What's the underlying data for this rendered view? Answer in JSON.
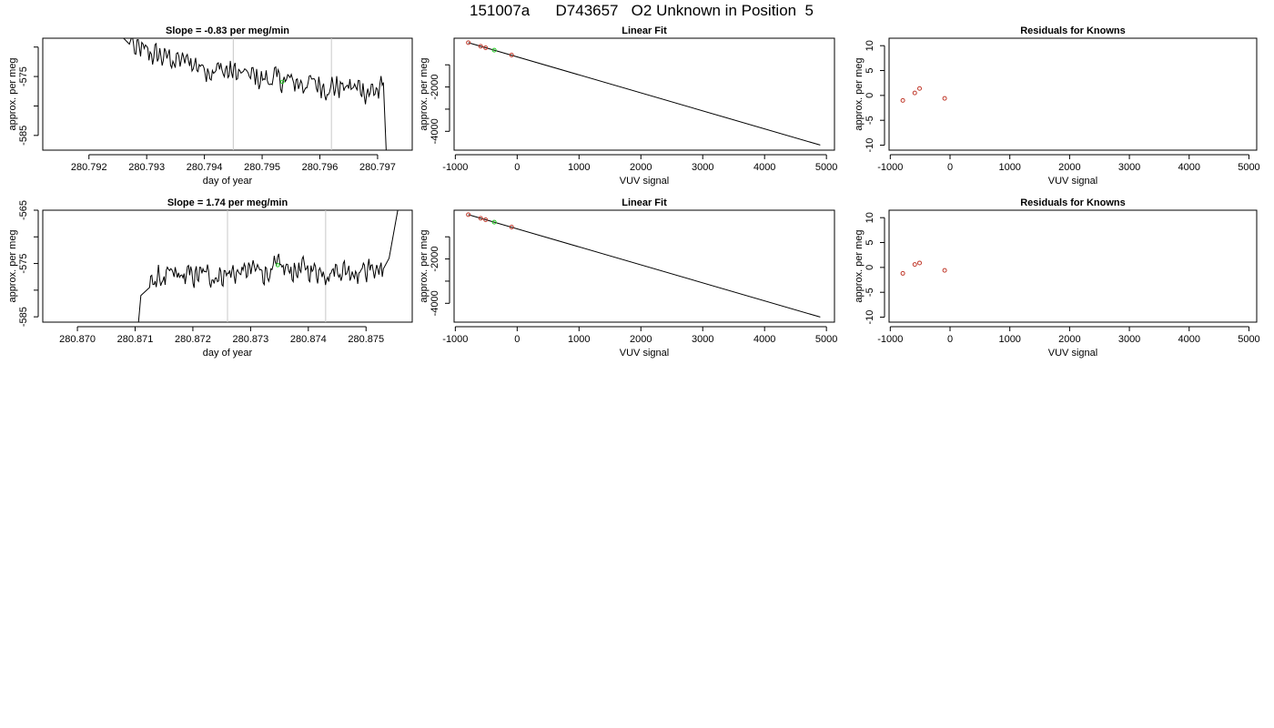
{
  "page_title": "151007a      D743657   O2 Unknown in Position  5",
  "colors": {
    "axis": "#000000",
    "trace": "#000000",
    "vline": "#c8c8c8",
    "known_point": "#c0392b",
    "unknown_point": "#22cc22"
  },
  "chart_data": [
    {
      "type": "line",
      "title": "Slope =  -0.83  per meg/min",
      "xlabel": "day of year",
      "ylabel": "approx. per meg",
      "xlim": [
        280.7912,
        280.7976
      ],
      "ylim": [
        -587.5,
        -568.5
      ],
      "x_ticks": [
        280.792,
        280.793,
        280.794,
        280.795,
        280.796,
        280.797
      ],
      "x_tick_labels": [
        "280.792",
        "280.793",
        "280.794",
        "280.795",
        "280.796",
        "280.797"
      ],
      "y_ticks": [
        -575,
        -585
      ],
      "y_tick_labels": [
        "-575",
        "-585"
      ],
      "extra_y_ticks": [
        -570,
        -580
      ],
      "vertical_lines": [
        280.7945,
        280.7962
      ],
      "trace": {
        "x_start": 280.7926,
        "x_end": 280.79715,
        "start_points": [
          [
            280.7926,
            -568.5
          ],
          [
            280.7927,
            -569.5
          ],
          [
            280.79275,
            -568.0
          ]
        ],
        "end_points": [
          [
            280.7971,
            -576.0
          ],
          [
            280.79715,
            -588.0
          ]
        ],
        "baseline_start": -570.5,
        "baseline_mid": -575.3,
        "baseline_end": -577.5,
        "noise": 1.4
      },
      "marker": {
        "x": 280.79535,
        "y": -575.9
      }
    },
    {
      "type": "scatter",
      "title": "Linear Fit",
      "xlabel": "VUV signal",
      "ylabel": "approx. per meg",
      "xlim": [
        -1020,
        5130
      ],
      "ylim": [
        -4850,
        200
      ],
      "x_ticks": [
        -1000,
        0,
        1000,
        2000,
        3000,
        4000,
        5000
      ],
      "x_tick_labels": [
        "-1000",
        "0",
        "1000",
        "2000",
        "3000",
        "4000",
        "5000"
      ],
      "y_ticks": [
        -2000,
        -4000
      ],
      "y_tick_labels": [
        "-2000",
        "-4000"
      ],
      "extra_y_ticks": [
        -1000,
        -3000
      ],
      "fit_line": [
        [
          -790,
          0
        ],
        [
          4900,
          -4620
        ]
      ],
      "known_points": [
        [
          -790,
          0
        ],
        [
          -590,
          -165
        ],
        [
          -510,
          -230
        ],
        [
          -90,
          -560
        ]
      ],
      "unknown_points": [
        [
          -370,
          -340
        ]
      ]
    },
    {
      "type": "scatter",
      "title": "Residuals for Knowns",
      "xlabel": "VUV signal",
      "ylabel": "approx. per meg",
      "xlim": [
        -1020,
        5130
      ],
      "ylim": [
        -11,
        11.5
      ],
      "x_ticks": [
        -1000,
        0,
        1000,
        2000,
        3000,
        4000,
        5000
      ],
      "x_tick_labels": [
        "-1000",
        "0",
        "1000",
        "2000",
        "3000",
        "4000",
        "5000"
      ],
      "y_ticks": [
        10,
        5,
        0,
        -5,
        -10
      ],
      "y_tick_labels": [
        "10",
        "5",
        "0",
        "-5",
        "-10"
      ],
      "known_points": [
        [
          -790,
          -1.0
        ],
        [
          -590,
          0.5
        ],
        [
          -510,
          1.4
        ],
        [
          -90,
          -0.6
        ]
      ]
    },
    {
      "type": "line",
      "title": "Slope =  1.74  per meg/min",
      "xlabel": "day of year",
      "ylabel": "approx. per meg",
      "xlim": [
        280.8694,
        280.8758
      ],
      "ylim": [
        -586,
        -565
      ],
      "x_ticks": [
        280.87,
        280.871,
        280.872,
        280.873,
        280.874,
        280.875
      ],
      "x_tick_labels": [
        "280.870",
        "280.871",
        "280.872",
        "280.873",
        "280.874",
        "280.875"
      ],
      "y_ticks": [
        -565,
        -575,
        -585
      ],
      "y_tick_labels": [
        "-565",
        "-575",
        "-585"
      ],
      "extra_y_ticks": [
        -570,
        -580
      ],
      "vertical_lines": [
        280.8726,
        280.8743
      ],
      "trace": {
        "x_start": 280.87105,
        "x_end": 280.87555,
        "start_points": [
          [
            280.87105,
            -587.0
          ],
          [
            280.8711,
            -581.0
          ],
          [
            280.87125,
            -579.5
          ]
        ],
        "end_points": [
          [
            280.8753,
            -576.0
          ],
          [
            280.8754,
            -574.0
          ],
          [
            280.87555,
            -565.0
          ]
        ],
        "baseline_start": -578.0,
        "baseline_mid": -576.3,
        "baseline_end": -576.0,
        "noise": 1.5
      },
      "marker": {
        "x": 280.87347,
        "y": -575.3
      }
    },
    {
      "type": "scatter",
      "title": "Linear Fit",
      "xlabel": "VUV signal",
      "ylabel": "approx. per meg",
      "xlim": [
        -1020,
        5130
      ],
      "ylim": [
        -4850,
        200
      ],
      "x_ticks": [
        -1000,
        0,
        1000,
        2000,
        3000,
        4000,
        5000
      ],
      "x_tick_labels": [
        "-1000",
        "0",
        "1000",
        "2000",
        "3000",
        "4000",
        "5000"
      ],
      "y_ticks": [
        -2000,
        -4000
      ],
      "y_tick_labels": [
        "-2000",
        "-4000"
      ],
      "extra_y_ticks": [
        -1000,
        -3000
      ],
      "fit_line": [
        [
          -790,
          0
        ],
        [
          4900,
          -4620
        ]
      ],
      "known_points": [
        [
          -790,
          0
        ],
        [
          -590,
          -165
        ],
        [
          -510,
          -230
        ],
        [
          -90,
          -560
        ]
      ],
      "unknown_points": [
        [
          -370,
          -340
        ]
      ]
    },
    {
      "type": "scatter",
      "title": "Residuals for Knowns",
      "xlabel": "VUV signal",
      "ylabel": "approx. per meg",
      "xlim": [
        -1020,
        5130
      ],
      "ylim": [
        -11,
        11.5
      ],
      "x_ticks": [
        -1000,
        0,
        1000,
        2000,
        3000,
        4000,
        5000
      ],
      "x_tick_labels": [
        "-1000",
        "0",
        "1000",
        "2000",
        "3000",
        "4000",
        "5000"
      ],
      "y_ticks": [
        10,
        5,
        0,
        -5,
        -10
      ],
      "y_tick_labels": [
        "10",
        "5",
        "0",
        "-5",
        "-10"
      ],
      "known_points": [
        [
          -790,
          -1.2
        ],
        [
          -590,
          0.6
        ],
        [
          -510,
          0.9
        ],
        [
          -90,
          -0.6
        ]
      ]
    }
  ]
}
